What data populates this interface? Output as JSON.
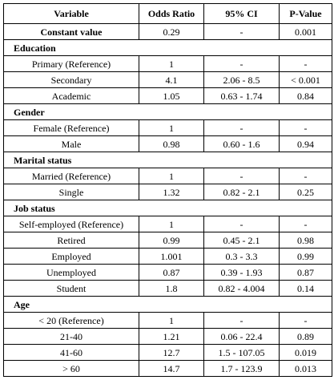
{
  "table": {
    "headers": [
      "Variable",
      "Odds Ratio",
      "95% CI",
      "P-Value"
    ],
    "constant": {
      "label": "Constant value",
      "or": "0.29",
      "ci": "-",
      "p": "0.001"
    },
    "sections": [
      {
        "title": "Education",
        "rows": [
          {
            "label": "Primary (Reference)",
            "or": "1",
            "ci": "-",
            "p": "-"
          },
          {
            "label": "Secondary",
            "or": "4.1",
            "ci": "2.06 - 8.5",
            "p": "< 0.001"
          },
          {
            "label": "Academic",
            "or": "1.05",
            "ci": "0.63 - 1.74",
            "p": "0.84"
          }
        ]
      },
      {
        "title": "Gender",
        "rows": [
          {
            "label": "Female (Reference)",
            "or": "1",
            "ci": "-",
            "p": "-"
          },
          {
            "label": "Male",
            "or": "0.98",
            "ci": "0.60 - 1.6",
            "p": "0.94"
          }
        ]
      },
      {
        "title": "Marital status",
        "rows": [
          {
            "label": "Married (Reference)",
            "or": "1",
            "ci": "-",
            "p": "-"
          },
          {
            "label": "Single",
            "or": "1.32",
            "ci": "0.82 - 2.1",
            "p": "0.25"
          }
        ]
      },
      {
        "title": "Job status",
        "rows": [
          {
            "label": "Self-employed (Reference)",
            "or": "1",
            "ci": "-",
            "p": "-"
          },
          {
            "label": "Retired",
            "or": "0.99",
            "ci": "0.45 - 2.1",
            "p": "0.98"
          },
          {
            "label": "Employed",
            "or": "1.001",
            "ci": "0.3 - 3.3",
            "p": "0.99"
          },
          {
            "label": "Unemployed",
            "or": "0.87",
            "ci": "0.39 - 1.93",
            "p": "0.87"
          },
          {
            "label": "Student",
            "or": "1.8",
            "ci": "0.82 - 4.004",
            "p": "0.14"
          }
        ]
      },
      {
        "title": "Age",
        "rows": [
          {
            "label": "< 20 (Reference)",
            "or": "1",
            "ci": "-",
            "p": "-"
          },
          {
            "label": "21-40",
            "or": "1.21",
            "ci": "0.06 - 22.4",
            "p": "0.89"
          },
          {
            "label": "41-60",
            "or": "12.7",
            "ci": "1.5 - 107.05",
            "p": "0.019"
          },
          {
            "label": "> 60",
            "or": "14.7",
            "ci": "1.7 - 123.9",
            "p": "0.013"
          }
        ]
      }
    ]
  }
}
